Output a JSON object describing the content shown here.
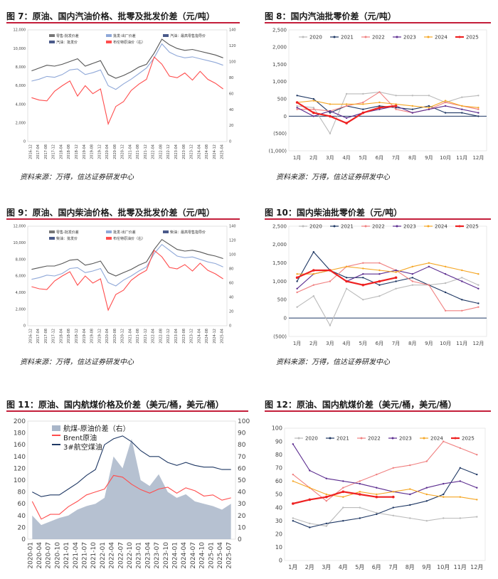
{
  "figures": {
    "fig7": {
      "title": "图 7：原油、国内汽油价格、批零及批发价差（元/吨）",
      "source": "资料来源：万得，信达证券研发中心"
    },
    "fig8": {
      "title": "图 8：国内汽油批零价差（元/吨）",
      "source": "资料来源：万得，信达证券研发中心"
    },
    "fig9": {
      "title": "图 9：原油、国内柴油价格、批零及批发价差（元/吨）",
      "source": "资料来源：万得，信达证券研发中心"
    },
    "fig10": {
      "title": "图 10：国内柴油批零价差（元/吨）",
      "source": "资料来源：万得，信达证券研发中心"
    },
    "fig11": {
      "title": "图 11：原油、国内航煤价格及价差（美元/桶，美元/桶）"
    },
    "fig12": {
      "title": "图 12：原油、国内航煤价差（美元/桶，美元/桶）"
    }
  },
  "colors": {
    "c2020": "#bbbbbb",
    "c2021": "#1f3864",
    "c2022": "#f08080",
    "c2023": "#5b2c8f",
    "c2024": "#f5a623",
    "c2025": "#ee2222",
    "retail": "#555555",
    "wholesale": "#8fa8d8",
    "brent": "#ff4d4d",
    "jet": "#1f3864",
    "area": "#a9b6c9"
  },
  "chart_data": [
    {
      "id": "fig7",
      "type": "line",
      "legend": [
        "零售-批发价差",
        "批发-出厂价差",
        "汽油：最高零售指导价",
        "汽油：批发价",
        "布伦特原油价（右）"
      ],
      "y_ticks": [
        "12,000",
        "10,000",
        "8,000",
        "6,000",
        "4,000",
        "2,000",
        "0"
      ],
      "y2_ticks": [
        "140",
        "120",
        "100",
        "80",
        "60",
        "40",
        "20",
        "0"
      ],
      "x_ticks": [
        "2016-12",
        "2017-04",
        "2017-08",
        "2017-12",
        "2018-04",
        "2018-08",
        "2018-12",
        "2019-04",
        "2019-08",
        "2019-12",
        "2020-04",
        "2020-08",
        "2020-12",
        "2021-04",
        "2021-08",
        "2021-12",
        "2022-04",
        "2022-08",
        "2022-12",
        "2023-04",
        "2023-08",
        "2023-12",
        "2024-04",
        "2024-08",
        "2024-12",
        "2025-04"
      ],
      "ylim": [
        0,
        12000
      ],
      "y2lim": [
        0,
        140
      ],
      "series": [
        {
          "name": "汽油：最高零售指导价",
          "key": "retail",
          "values": [
            7600,
            7900,
            8200,
            8100,
            8300,
            8600,
            8900,
            8100,
            8400,
            8700,
            7200,
            6800,
            7100,
            7500,
            8000,
            8300,
            9500,
            11000,
            10400,
            10000,
            9800,
            9900,
            9700,
            9500,
            9300,
            9000
          ]
        },
        {
          "name": "汽油：批发价",
          "key": "wholesale",
          "values": [
            6500,
            6700,
            7000,
            6900,
            7200,
            7700,
            7800,
            7200,
            7400,
            7700,
            6000,
            5600,
            6200,
            6700,
            7300,
            7900,
            9000,
            10500,
            9600,
            9200,
            9000,
            9100,
            8900,
            8700,
            8500,
            8200
          ]
        },
        {
          "name": "布伦特原油价（右）",
          "key": "brent",
          "axis": "right",
          "values": [
            55,
            52,
            51,
            63,
            70,
            76,
            57,
            70,
            60,
            66,
            22,
            44,
            50,
            64,
            72,
            78,
            106,
            97,
            82,
            80,
            86,
            77,
            88,
            78,
            73,
            66
          ]
        }
      ]
    },
    {
      "id": "fig8",
      "type": "line",
      "y_ticks": [
        "2,500",
        "2,000",
        "1,500",
        "1,000",
        "500",
        "0",
        "(500)",
        "(1,000)"
      ],
      "x_ticks": [
        "1月",
        "2月",
        "3月",
        "4月",
        "5月",
        "6月",
        "7月",
        "8月",
        "9月",
        "10月",
        "11月",
        "12月"
      ],
      "ylim": [
        -1000,
        2500
      ],
      "series": [
        {
          "name": "2020",
          "key": "c2020",
          "values": [
            300,
            250,
            -500,
            650,
            650,
            700,
            600,
            600,
            600,
            400,
            550,
            600
          ]
        },
        {
          "name": "2021",
          "key": "c2021",
          "values": [
            600,
            500,
            100,
            300,
            200,
            300,
            250,
            200,
            300,
            100,
            100,
            0
          ]
        },
        {
          "name": "2022",
          "key": "c2022",
          "values": [
            200,
            200,
            150,
            300,
            400,
            700,
            200,
            100,
            200,
            400,
            300,
            200
          ]
        },
        {
          "name": "2023",
          "key": "c2023",
          "values": [
            250,
            0,
            150,
            -50,
            100,
            200,
            300,
            100,
            200,
            300,
            200,
            100
          ]
        },
        {
          "name": "2024",
          "key": "c2024",
          "values": [
            400,
            450,
            350,
            350,
            350,
            400,
            350,
            300,
            250,
            450,
            300,
            250
          ]
        },
        {
          "name": "2025",
          "key": "c2025",
          "values": [
            400,
            100,
            0,
            -200,
            100,
            250,
            300
          ]
        }
      ]
    },
    {
      "id": "fig9",
      "type": "line",
      "legend": [
        "零售-批发价差",
        "批发-出厂价差",
        "柴油：最高零售指导价",
        "柴油：批发价",
        "布伦特原油价（右）"
      ],
      "y_ticks": [
        "12,000",
        "10,000",
        "8,000",
        "6,000",
        "4,000",
        "2,000",
        "0"
      ],
      "y2_ticks": [
        "140",
        "120",
        "100",
        "80",
        "60",
        "40",
        "20",
        "0"
      ],
      "x_ticks": [
        "2016-12",
        "2017-04",
        "2017-08",
        "2017-12",
        "2018-04",
        "2018-08",
        "2018-12",
        "2019-04",
        "2019-08",
        "2019-12",
        "2020-04",
        "2020-08",
        "2020-12",
        "2021-04",
        "2021-08",
        "2021-12",
        "2022-04",
        "2022-08",
        "2022-12",
        "2023-04",
        "2023-08",
        "2023-12",
        "2024-04",
        "2024-08",
        "2024-12",
        "2025-04"
      ],
      "ylim": [
        0,
        12000
      ],
      "y2lim": [
        0,
        140
      ],
      "series": [
        {
          "name": "柴油：最高零售指导价",
          "key": "retail",
          "values": [
            6800,
            7000,
            7200,
            7200,
            7500,
            7900,
            8000,
            7300,
            7500,
            7800,
            6400,
            6000,
            6400,
            6800,
            7300,
            7700,
            9200,
            10400,
            9800,
            9200,
            9000,
            9100,
            8900,
            8600,
            8400,
            8100
          ]
        },
        {
          "name": "柴油：批发价",
          "key": "wholesale",
          "values": [
            5600,
            5800,
            6100,
            6000,
            6300,
            6900,
            7000,
            6400,
            6600,
            6900,
            5200,
            4800,
            5500,
            6000,
            6600,
            7100,
            8700,
            9800,
            9100,
            8400,
            8200,
            8300,
            8000,
            7700,
            7500,
            7100
          ]
        },
        {
          "name": "布伦特原油价（右）",
          "key": "brent",
          "axis": "right",
          "values": [
            55,
            52,
            51,
            63,
            70,
            76,
            57,
            70,
            60,
            66,
            22,
            44,
            50,
            64,
            72,
            78,
            106,
            97,
            82,
            80,
            86,
            77,
            88,
            78,
            73,
            66
          ]
        }
      ]
    },
    {
      "id": "fig10",
      "type": "line",
      "y_ticks": [
        "2,500",
        "2,000",
        "1,500",
        "1,000",
        "500",
        "0",
        "(500)"
      ],
      "x_ticks": [
        "1月",
        "2月",
        "3月",
        "4月",
        "5月",
        "6月",
        "7月",
        "8月",
        "9月",
        "10月",
        "11月",
        "12月"
      ],
      "ylim": [
        -500,
        2500
      ],
      "series": [
        {
          "name": "2020",
          "key": "c2020",
          "values": [
            300,
            600,
            -200,
            800,
            500,
            600,
            800,
            900,
            900,
            950,
            1100,
            900
          ]
        },
        {
          "name": "2021",
          "key": "c2021",
          "values": [
            1000,
            1800,
            1300,
            1100,
            1100,
            900,
            1000,
            1100,
            900,
            700,
            500,
            400
          ]
        },
        {
          "name": "2022",
          "key": "c2022",
          "values": [
            700,
            900,
            1000,
            1400,
            1500,
            1500,
            1300,
            1000,
            900,
            200,
            200,
            300
          ]
        },
        {
          "name": "2023",
          "key": "c2023",
          "values": [
            800,
            1200,
            1300,
            1000,
            1200,
            1200,
            1300,
            1200,
            1400,
            1200,
            1000,
            800
          ]
        },
        {
          "name": "2024",
          "key": "c2024",
          "values": [
            1200,
            1200,
            1300,
            1400,
            1350,
            1300,
            1250,
            1400,
            1500,
            1400,
            1300,
            1200
          ]
        },
        {
          "name": "2025",
          "key": "c2025",
          "values": [
            1100,
            1300,
            1300,
            1000,
            900,
            1000,
            1100
          ]
        }
      ]
    },
    {
      "id": "fig11",
      "type": "line",
      "legend": [
        "航煤-原油价差（右）",
        "Brent原油",
        "3#航空煤油"
      ],
      "y_ticks": [
        "200",
        "180",
        "160",
        "140",
        "120",
        "100",
        "80",
        "60",
        "40",
        "20",
        "0"
      ],
      "y2_ticks": [
        "100",
        "90",
        "80",
        "70",
        "60",
        "50",
        "40",
        "30",
        "20",
        "10",
        "0"
      ],
      "x_ticks": [
        "2020-01",
        "2020-04",
        "2020-07",
        "2020-10",
        "2021-01",
        "2021-04",
        "2021-07",
        "2021-10",
        "2022-01",
        "2022-04",
        "2022-07",
        "2022-10",
        "2023-01",
        "2023-04",
        "2023-07",
        "2023-10",
        "2024-01",
        "2024-04",
        "2024-07",
        "2024-10",
        "2025-01",
        "2025-04",
        "2025-07"
      ],
      "ylim": [
        0,
        200
      ],
      "y2lim": [
        0,
        100
      ],
      "series": [
        {
          "name": "航煤-原油价差（右）",
          "key": "area",
          "axis": "right",
          "values": [
            20,
            12,
            15,
            18,
            20,
            25,
            28,
            30,
            35,
            70,
            60,
            85,
            50,
            45,
            55,
            40,
            35,
            38,
            32,
            30,
            28,
            25,
            30
          ]
        },
        {
          "name": "Brent原油",
          "key": "brent",
          "values": [
            64,
            34,
            42,
            42,
            55,
            64,
            75,
            80,
            85,
            108,
            105,
            93,
            84,
            78,
            85,
            88,
            78,
            87,
            82,
            73,
            75,
            66,
            70
          ]
        },
        {
          "name": "3#航空煤油",
          "key": "jet",
          "values": [
            80,
            72,
            75,
            75,
            85,
            95,
            108,
            118,
            160,
            170,
            175,
            165,
            150,
            140,
            140,
            130,
            125,
            130,
            125,
            122,
            122,
            118,
            118
          ]
        }
      ]
    },
    {
      "id": "fig12",
      "type": "line",
      "y_ticks": [
        "100",
        "90",
        "80",
        "70",
        "60",
        "50",
        "40",
        "30",
        "20",
        "10",
        "0"
      ],
      "x_ticks": [
        "1月",
        "2月",
        "3月",
        "4月",
        "5月",
        "6月",
        "7月",
        "8月",
        "9月",
        "10月",
        "11月",
        "12月"
      ],
      "ylim": [
        0,
        100
      ],
      "series": [
        {
          "name": "2020",
          "key": "c2020",
          "values": [
            32,
            28,
            26,
            40,
            40,
            36,
            34,
            32,
            30,
            32,
            32,
            33
          ]
        },
        {
          "name": "2021",
          "key": "c2021",
          "values": [
            30,
            25,
            28,
            30,
            32,
            35,
            40,
            42,
            45,
            50,
            70,
            65
          ]
        },
        {
          "name": "2022",
          "key": "c2022",
          "values": [
            65,
            55,
            45,
            55,
            60,
            65,
            70,
            72,
            75,
            90,
            85,
            80
          ]
        },
        {
          "name": "2023",
          "key": "c2023",
          "values": [
            88,
            68,
            62,
            60,
            58,
            55,
            52,
            50,
            55,
            58,
            60,
            55
          ]
        },
        {
          "name": "2024",
          "key": "c2024",
          "values": [
            60,
            55,
            50,
            48,
            52,
            50,
            52,
            54,
            50,
            48,
            48,
            46
          ]
        },
        {
          "name": "2025",
          "key": "c2025",
          "values": [
            43,
            46,
            48,
            52,
            50,
            48,
            48
          ]
        }
      ]
    }
  ]
}
